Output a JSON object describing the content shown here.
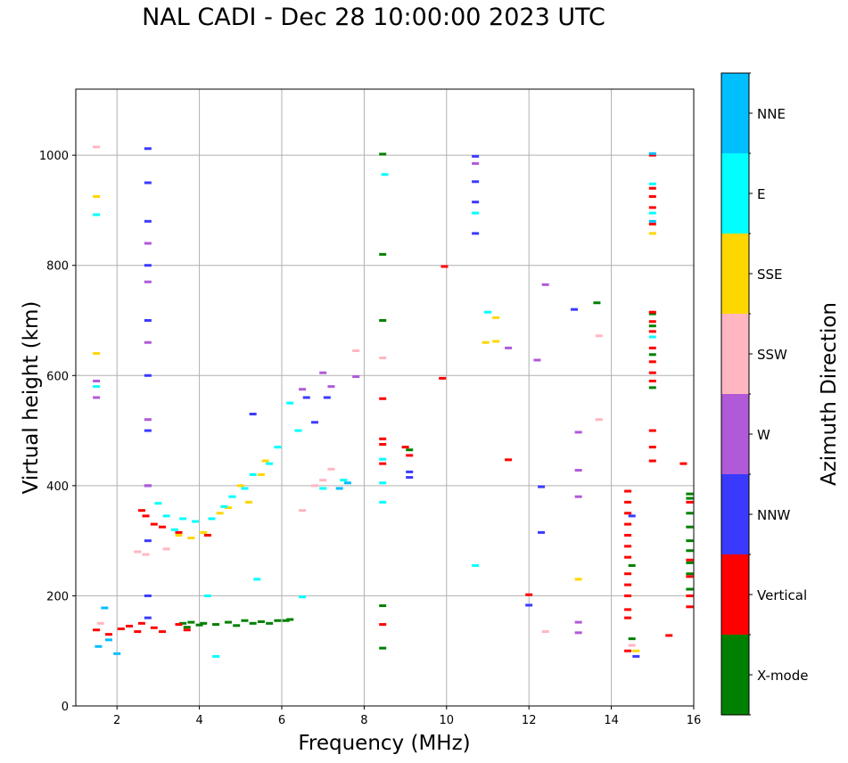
{
  "chart_data": {
    "type": "scatter",
    "title": "NAL CADI - Dec 28 10:00:00 2023 UTC",
    "xlabel": "Frequency (MHz)",
    "ylabel": "Virtual height (km)",
    "xlim": [
      1,
      16
    ],
    "ylim": [
      0,
      1120
    ],
    "xticks": [
      2,
      4,
      6,
      8,
      10,
      12,
      14,
      16
    ],
    "yticks": [
      0,
      200,
      400,
      600,
      800,
      1000
    ],
    "grid": true,
    "colorbar": {
      "label": "Azimuth Direction",
      "categories": [
        "X-mode",
        "Vertical",
        "NNW",
        "W",
        "SSW",
        "SSE",
        "E",
        "NNE"
      ],
      "colors": [
        "#008000",
        "#ff0000",
        "#3a3aff",
        "#b05ad8",
        "#ffb6c1",
        "#ffd700",
        "#00ffff",
        "#00bfff"
      ]
    },
    "series": [
      {
        "name": "X-mode",
        "points": [
          [
            3.6,
            150
          ],
          [
            3.7,
            143
          ],
          [
            3.8,
            152
          ],
          [
            4.0,
            147
          ],
          [
            4.1,
            150
          ],
          [
            4.4,
            148
          ],
          [
            4.7,
            152
          ],
          [
            4.9,
            146
          ],
          [
            5.1,
            155
          ],
          [
            5.3,
            150
          ],
          [
            5.5,
            153
          ],
          [
            5.7,
            150
          ],
          [
            5.9,
            155
          ],
          [
            6.1,
            155
          ],
          [
            6.2,
            157
          ],
          [
            8.45,
            1002
          ],
          [
            8.45,
            820
          ],
          [
            8.45,
            700
          ],
          [
            8.45,
            182
          ],
          [
            8.45,
            105
          ],
          [
            9.1,
            465
          ],
          [
            13.65,
            732
          ],
          [
            14.5,
            122
          ],
          [
            14.5,
            255
          ],
          [
            15.0,
            712
          ],
          [
            15.0,
            690
          ],
          [
            15.0,
            638
          ],
          [
            15.0,
            578
          ],
          [
            15.9,
            385
          ],
          [
            15.9,
            377
          ],
          [
            15.9,
            350
          ],
          [
            15.9,
            325
          ],
          [
            15.9,
            300
          ],
          [
            15.9,
            282
          ],
          [
            15.9,
            260
          ],
          [
            15.9,
            240
          ],
          [
            15.9,
            212
          ]
        ]
      },
      {
        "name": "Vertical",
        "points": [
          [
            1.5,
            138
          ],
          [
            1.8,
            130
          ],
          [
            2.1,
            140
          ],
          [
            2.3,
            145
          ],
          [
            2.5,
            135
          ],
          [
            2.6,
            150
          ],
          [
            2.9,
            142
          ],
          [
            3.1,
            135
          ],
          [
            3.5,
            148
          ],
          [
            3.7,
            138
          ],
          [
            2.6,
            355
          ],
          [
            2.7,
            345
          ],
          [
            2.9,
            330
          ],
          [
            3.1,
            325
          ],
          [
            3.5,
            315
          ],
          [
            4.2,
            310
          ],
          [
            8.45,
            558
          ],
          [
            8.45,
            485
          ],
          [
            8.45,
            475
          ],
          [
            8.45,
            440
          ],
          [
            8.45,
            148
          ],
          [
            9.0,
            470
          ],
          [
            9.1,
            455
          ],
          [
            9.9,
            595
          ],
          [
            9.95,
            798
          ],
          [
            11.5,
            447
          ],
          [
            12.0,
            202
          ],
          [
            15.0,
            1000
          ],
          [
            15.0,
            940
          ],
          [
            15.0,
            925
          ],
          [
            15.0,
            905
          ],
          [
            15.0,
            875
          ],
          [
            15.0,
            715
          ],
          [
            15.0,
            698
          ],
          [
            15.0,
            680
          ],
          [
            15.0,
            650
          ],
          [
            15.0,
            625
          ],
          [
            15.0,
            605
          ],
          [
            15.0,
            590
          ],
          [
            15.0,
            500
          ],
          [
            15.0,
            470
          ],
          [
            15.0,
            445
          ],
          [
            15.75,
            440
          ],
          [
            14.4,
            390
          ],
          [
            14.4,
            370
          ],
          [
            14.4,
            350
          ],
          [
            14.4,
            330
          ],
          [
            14.4,
            310
          ],
          [
            14.4,
            290
          ],
          [
            14.4,
            270
          ],
          [
            14.4,
            240
          ],
          [
            14.4,
            220
          ],
          [
            14.4,
            200
          ],
          [
            14.4,
            175
          ],
          [
            14.4,
            160
          ],
          [
            14.4,
            100
          ],
          [
            15.4,
            128
          ],
          [
            15.9,
            370
          ],
          [
            15.9,
            265
          ],
          [
            15.9,
            235
          ],
          [
            15.9,
            200
          ],
          [
            15.9,
            180
          ]
        ]
      },
      {
        "name": "NNW",
        "points": [
          [
            2.75,
            1012
          ],
          [
            2.75,
            950
          ],
          [
            2.75,
            880
          ],
          [
            2.75,
            800
          ],
          [
            2.75,
            700
          ],
          [
            2.75,
            600
          ],
          [
            2.75,
            500
          ],
          [
            2.75,
            400
          ],
          [
            2.75,
            300
          ],
          [
            2.75,
            200
          ],
          [
            2.75,
            160
          ],
          [
            5.3,
            530
          ],
          [
            6.6,
            560
          ],
          [
            6.8,
            515
          ],
          [
            7.1,
            560
          ],
          [
            9.1,
            425
          ],
          [
            9.1,
            415
          ],
          [
            10.7,
            998
          ],
          [
            10.7,
            952
          ],
          [
            10.7,
            915
          ],
          [
            10.7,
            858
          ],
          [
            12.3,
            315
          ],
          [
            12.3,
            398
          ],
          [
            12.0,
            183
          ],
          [
            13.1,
            720
          ],
          [
            14.5,
            345
          ],
          [
            14.6,
            90
          ]
        ]
      },
      {
        "name": "W",
        "points": [
          [
            1.5,
            560
          ],
          [
            1.5,
            590
          ],
          [
            2.75,
            840
          ],
          [
            2.75,
            770
          ],
          [
            2.75,
            660
          ],
          [
            2.75,
            520
          ],
          [
            2.75,
            400
          ],
          [
            6.5,
            575
          ],
          [
            7.0,
            605
          ],
          [
            7.2,
            580
          ],
          [
            7.8,
            598
          ],
          [
            10.7,
            985
          ],
          [
            11.5,
            650
          ],
          [
            12.2,
            628
          ],
          [
            12.4,
            765
          ],
          [
            13.2,
            497
          ],
          [
            13.2,
            428
          ],
          [
            13.2,
            380
          ],
          [
            13.2,
            152
          ],
          [
            13.2,
            133
          ]
        ]
      },
      {
        "name": "SSW",
        "points": [
          [
            1.5,
            1015
          ],
          [
            1.6,
            150
          ],
          [
            2.5,
            280
          ],
          [
            2.7,
            275
          ],
          [
            3.2,
            285
          ],
          [
            6.5,
            355
          ],
          [
            6.8,
            400
          ],
          [
            7.0,
            410
          ],
          [
            7.2,
            430
          ],
          [
            7.8,
            645
          ],
          [
            8.45,
            632
          ],
          [
            12.4,
            135
          ],
          [
            13.7,
            520
          ],
          [
            13.7,
            672
          ],
          [
            14.5,
            110
          ]
        ]
      },
      {
        "name": "SSE",
        "points": [
          [
            1.5,
            925
          ],
          [
            1.5,
            640
          ],
          [
            3.5,
            310
          ],
          [
            3.8,
            305
          ],
          [
            4.1,
            315
          ],
          [
            4.5,
            350
          ],
          [
            4.7,
            360
          ],
          [
            5.0,
            400
          ],
          [
            5.2,
            370
          ],
          [
            5.5,
            420
          ],
          [
            5.6,
            445
          ],
          [
            10.95,
            660
          ],
          [
            11.2,
            662
          ],
          [
            11.2,
            705
          ],
          [
            13.2,
            230
          ],
          [
            14.6,
            100
          ],
          [
            15.0,
            858
          ]
        ]
      },
      {
        "name": "E",
        "points": [
          [
            1.5,
            892
          ],
          [
            1.5,
            580
          ],
          [
            3.0,
            368
          ],
          [
            3.2,
            345
          ],
          [
            3.4,
            320
          ],
          [
            3.6,
            340
          ],
          [
            3.9,
            335
          ],
          [
            4.3,
            340
          ],
          [
            4.2,
            200
          ],
          [
            4.4,
            90
          ],
          [
            4.6,
            362
          ],
          [
            4.8,
            380
          ],
          [
            5.1,
            395
          ],
          [
            5.3,
            420
          ],
          [
            5.7,
            440
          ],
          [
            5.9,
            470
          ],
          [
            6.2,
            550
          ],
          [
            6.4,
            500
          ],
          [
            7.0,
            395
          ],
          [
            7.5,
            410
          ],
          [
            5.4,
            230
          ],
          [
            6.5,
            198
          ],
          [
            8.45,
            448
          ],
          [
            8.45,
            405
          ],
          [
            8.45,
            370
          ],
          [
            8.5,
            965
          ],
          [
            10.7,
            895
          ],
          [
            10.7,
            255
          ],
          [
            11.0,
            715
          ],
          [
            15.0,
            948
          ],
          [
            15.0,
            895
          ],
          [
            15.0,
            670
          ]
        ]
      },
      {
        "name": "NNE",
        "points": [
          [
            1.55,
            108
          ],
          [
            1.7,
            178
          ],
          [
            1.8,
            120
          ],
          [
            2.0,
            95
          ],
          [
            7.6,
            405
          ],
          [
            7.4,
            395
          ],
          [
            15.0,
            1003
          ],
          [
            15.0,
            880
          ]
        ]
      }
    ]
  }
}
